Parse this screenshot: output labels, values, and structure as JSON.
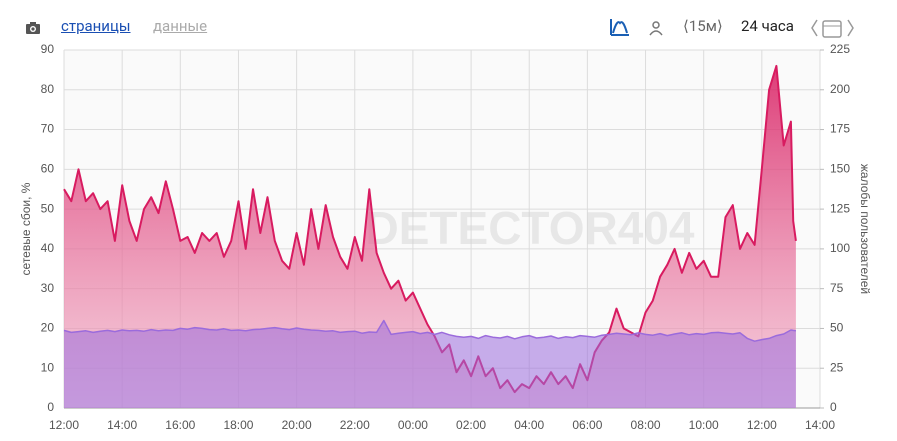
{
  "toolbar": {
    "pages": "страницы",
    "data": "данные",
    "interval": "⟨15м⟩",
    "period": "24 часа"
  },
  "chart_data": {
    "type": "area",
    "watermark": "DETECTOR404",
    "ylabel": "сетевые сбои, %",
    "y2label": "жалобы пользователей",
    "xlim": [
      12,
      38
    ],
    "xticks": [
      {
        "value": 12,
        "label": "12:00"
      },
      {
        "value": 14,
        "label": "14:00"
      },
      {
        "value": 16,
        "label": "16:00"
      },
      {
        "value": 18,
        "label": "18:00"
      },
      {
        "value": 20,
        "label": "20:00"
      },
      {
        "value": 22,
        "label": "22:00"
      },
      {
        "value": 24,
        "label": "00:00"
      },
      {
        "value": 26,
        "label": "02:00"
      },
      {
        "value": 28,
        "label": "04:00"
      },
      {
        "value": 30,
        "label": "06:00"
      },
      {
        "value": 32,
        "label": "08:00"
      },
      {
        "value": 34,
        "label": "10:00"
      },
      {
        "value": 36,
        "label": "12:00"
      },
      {
        "value": 38,
        "label": "14:00"
      }
    ],
    "ylim": [
      0,
      90
    ],
    "yticks": [
      0,
      10,
      20,
      30,
      40,
      50,
      60,
      70,
      80,
      90
    ],
    "y2lim": [
      0,
      225
    ],
    "y2ticks": [
      0,
      25,
      50,
      75,
      100,
      125,
      150,
      175,
      200,
      225
    ],
    "grid": true,
    "x": [
      12,
      12.25,
      12.5,
      12.75,
      13,
      13.25,
      13.5,
      13.75,
      14,
      14.25,
      14.5,
      14.75,
      15,
      15.25,
      15.5,
      15.75,
      16,
      16.25,
      16.5,
      16.75,
      17,
      17.25,
      17.5,
      17.75,
      18,
      18.25,
      18.5,
      18.75,
      19,
      19.25,
      19.5,
      19.75,
      20,
      20.25,
      20.5,
      20.75,
      21,
      21.25,
      21.5,
      21.75,
      22,
      22.25,
      22.5,
      22.75,
      23,
      23.25,
      23.5,
      23.75,
      24,
      24.25,
      24.5,
      24.75,
      25,
      25.25,
      25.5,
      25.75,
      26,
      26.25,
      26.5,
      26.75,
      27,
      27.25,
      27.5,
      27.75,
      28,
      28.25,
      28.5,
      28.75,
      29,
      29.25,
      29.5,
      29.75,
      30,
      30.25,
      30.5,
      30.75,
      31,
      31.25,
      31.5,
      31.75,
      32,
      32.25,
      32.5,
      32.75,
      33,
      33.25,
      33.5,
      33.75,
      34,
      34.25,
      34.5,
      34.75,
      35,
      35.25,
      35.5,
      35.75,
      36,
      36.25,
      36.5,
      36.75,
      37,
      37.08,
      37.17
    ],
    "series": [
      {
        "color": "#d81b60",
        "axis": "y2",
        "values": [
          137.5,
          130,
          150,
          130,
          135,
          125,
          130,
          105,
          140,
          117.5,
          105,
          125,
          132.5,
          122.5,
          142.5,
          125,
          105,
          107.5,
          97.5,
          110,
          105,
          110,
          95,
          105,
          130,
          100,
          137.5,
          110,
          132.5,
          105,
          92.5,
          87.5,
          110,
          90,
          125,
          100,
          127.5,
          107.5,
          95,
          87.5,
          107.5,
          92.5,
          137.5,
          97.5,
          85,
          75,
          80,
          67.5,
          72.5,
          62.5,
          52.5,
          45,
          35,
          40,
          22.5,
          30,
          20,
          32.5,
          20,
          25,
          12.5,
          17.5,
          10,
          15,
          12.5,
          20,
          15,
          22.5,
          15,
          20,
          12.5,
          27.5,
          17.5,
          35,
          42.5,
          47.5,
          62.5,
          50,
          47.5,
          45,
          60,
          67.5,
          82.5,
          90,
          100,
          85,
          97.5,
          87.5,
          92.5,
          82.5,
          82.5,
          120,
          127.5,
          100,
          110,
          102.5,
          150,
          200,
          215,
          165,
          180,
          117.5,
          105
        ]
      },
      {
        "color": "#9b6bdc",
        "axis": "y",
        "values": [
          19.5,
          19,
          19.2,
          19.4,
          19,
          19.3,
          19.5,
          19.2,
          19.6,
          19.4,
          19.5,
          19.3,
          19.7,
          19.4,
          19.6,
          19.5,
          20,
          19.8,
          20.2,
          20,
          19.7,
          19.6,
          19.9,
          19.5,
          19.6,
          19.4,
          19.7,
          19.8,
          20,
          20.2,
          19.9,
          19.7,
          20.1,
          19.8,
          19.6,
          19.5,
          19.3,
          19.4,
          19,
          19.2,
          19.3,
          18.8,
          19.1,
          19,
          22,
          18.5,
          18.8,
          19,
          19.2,
          18.7,
          19,
          18.5,
          19,
          18.4,
          18,
          17.8,
          18,
          17.5,
          18.2,
          17.8,
          17.6,
          18,
          17.4,
          17.9,
          18.2,
          17.6,
          17.8,
          18.1,
          17.5,
          17.9,
          17.7,
          18.2,
          18,
          17.8,
          18.3,
          18.5,
          18.8,
          18.6,
          18.4,
          18.9,
          18.5,
          18.3,
          18.7,
          18.2,
          18.6,
          18.9,
          18.4,
          18.7,
          18.5,
          18.9,
          19,
          18.8,
          18.6,
          18.9,
          17.5,
          16.8,
          17.2,
          17.5,
          18.2,
          18.6,
          19.6,
          19.5,
          19.4
        ]
      }
    ]
  }
}
